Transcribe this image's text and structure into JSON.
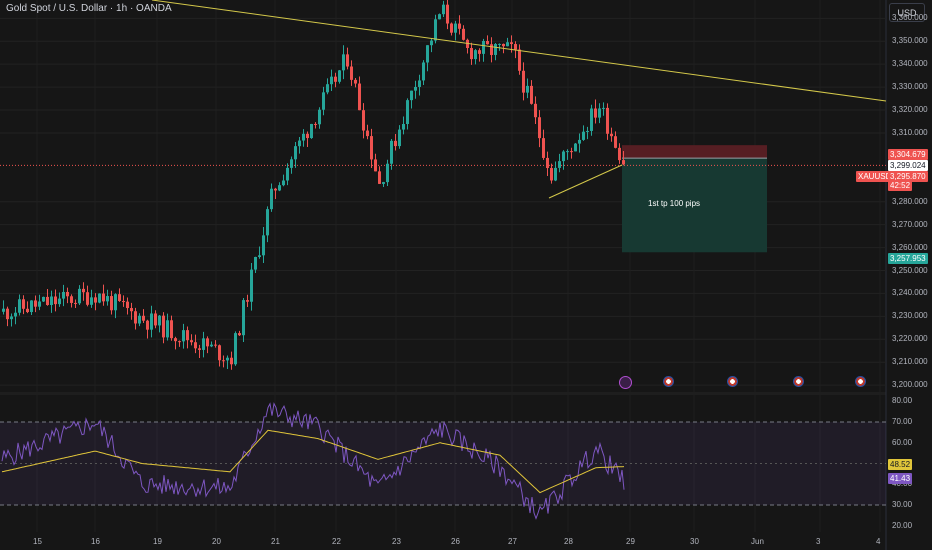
{
  "header": {
    "symbol_title": "Gold Spot / U.S. Dollar · 1h · OANDA",
    "currency_button": "USD"
  },
  "price_axis": {
    "ticks": [
      "3,360.000",
      "3,350.000",
      "3,340.000",
      "3,330.000",
      "3,320.000",
      "3,310.000",
      "3,280.000",
      "3,270.000",
      "3,260.000",
      "3,250.000",
      "3,240.000",
      "3,230.000",
      "3,220.000",
      "3,210.000",
      "3,200.000"
    ]
  },
  "price_tags": {
    "stop_loss": "3,304.679",
    "entry": "3,299.024",
    "symbol": "XAUUSD",
    "last_price": "3,295.870",
    "countdown": "42:52",
    "take_profit": "3,257.953"
  },
  "annotation": "1st tp 100 pips",
  "rsi_axis": {
    "ticks": [
      "80.00",
      "70.00",
      "60.00",
      "40.00",
      "30.00",
      "20.00"
    ],
    "ma_value": "48.52",
    "rsi_value": "41.43"
  },
  "time_axis": {
    "labels": [
      "15",
      "16",
      "19",
      "20",
      "21",
      "22",
      "23",
      "26",
      "27",
      "28",
      "29",
      "30",
      "Jun",
      "3",
      "4"
    ]
  },
  "colors": {
    "background": "#161616",
    "bull": "#26a69a",
    "bear": "#ef5350",
    "trendline": "#d4c84a",
    "rsi": "#7e57c2",
    "rsi_ma": "#e0c53a",
    "stop_zone": "#5a1f24",
    "target_zone": "#173b34"
  },
  "chart_data": {
    "type": "candlestick",
    "symbol": "XAUUSD",
    "timeframe": "1h",
    "x_labels": [
      "15",
      "16",
      "19",
      "20",
      "21",
      "22",
      "23",
      "26",
      "27",
      "28",
      "29",
      "30",
      "Jun",
      "3",
      "4"
    ],
    "ylim": [
      3197,
      3368
    ],
    "close_path": [
      {
        "x": "15",
        "y": 3232
      },
      {
        "x": "16",
        "y": 3240
      },
      {
        "x": "19",
        "y": 3232
      },
      {
        "x": "20",
        "y": 3212
      },
      {
        "x": "21",
        "y": 3285
      },
      {
        "x": "22",
        "y": 3343
      },
      {
        "x": "23",
        "y": 3288
      },
      {
        "x": "26",
        "y": 3364
      },
      {
        "x": "26",
        "y": 3346
      },
      {
        "x": "27",
        "y": 3346
      },
      {
        "x": "28",
        "y": 3292
      },
      {
        "x": "28",
        "y": 3322
      },
      {
        "x": "28",
        "y": 3296
      }
    ],
    "resistance_line": [
      {
        "x": "15",
        "y": 3384
      },
      {
        "x": "4",
        "y": 3329
      }
    ],
    "short_setup": {
      "entry": 3299.024,
      "stop_loss": 3304.679,
      "take_profit": 3257.953,
      "note": "1st tp 100 pips"
    },
    "rsi": {
      "ylim": [
        17,
        83
      ],
      "bands": [
        70,
        30
      ],
      "last_rsi": 41.43,
      "last_ma": 48.52,
      "rsi_path": [
        {
          "x": "15",
          "y": 52
        },
        {
          "x": "16",
          "y": 70
        },
        {
          "x": "19",
          "y": 40
        },
        {
          "x": "20",
          "y": 38
        },
        {
          "x": "21",
          "y": 76
        },
        {
          "x": "22",
          "y": 68
        },
        {
          "x": "23",
          "y": 38
        },
        {
          "x": "26",
          "y": 67
        },
        {
          "x": "27",
          "y": 48
        },
        {
          "x": "28",
          "y": 25
        },
        {
          "x": "28",
          "y": 57
        },
        {
          "x": "29",
          "y": 41
        }
      ],
      "ma_path": [
        {
          "x": "15",
          "y": 46
        },
        {
          "x": "16",
          "y": 56
        },
        {
          "x": "19",
          "y": 50
        },
        {
          "x": "20",
          "y": 46
        },
        {
          "x": "21",
          "y": 66
        },
        {
          "x": "22",
          "y": 62
        },
        {
          "x": "23",
          "y": 52
        },
        {
          "x": "26",
          "y": 60
        },
        {
          "x": "27",
          "y": 54
        },
        {
          "x": "28",
          "y": 36
        },
        {
          "x": "28",
          "y": 48
        },
        {
          "x": "29",
          "y": 48.5
        }
      ]
    }
  }
}
